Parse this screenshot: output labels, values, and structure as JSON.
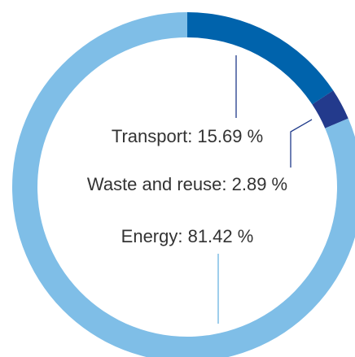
{
  "chart_data": {
    "type": "donut",
    "values": [
      15.69,
      2.89,
      81.42
    ],
    "value_labels": [
      "Transport: 15.69 %",
      "Waste and reuse: 2.89 %",
      "Energy: 81.42 %"
    ],
    "colors": [
      "#0063ac",
      "#233a8c",
      "#7fbee7"
    ]
  }
}
